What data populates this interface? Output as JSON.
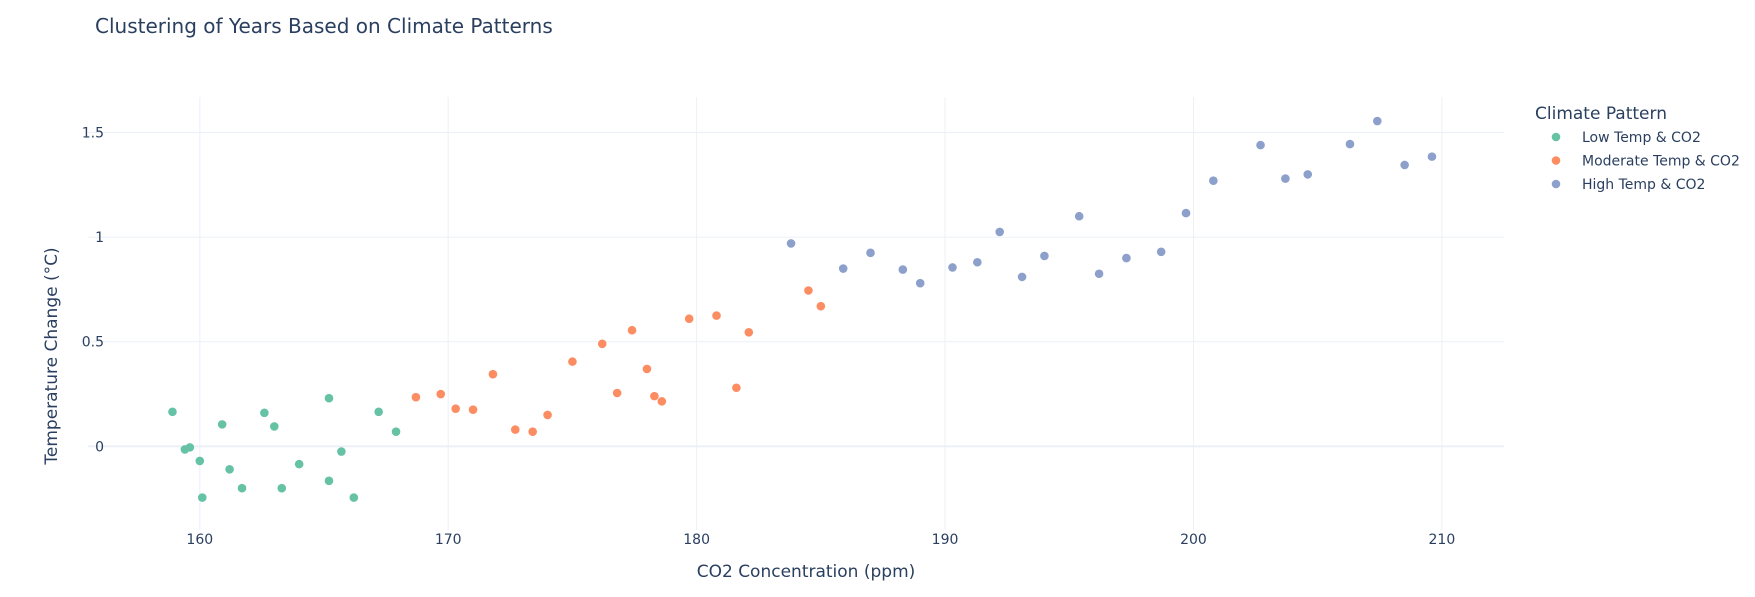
{
  "chart_data": {
    "type": "scatter",
    "title": "Clustering of Years Based on Climate Patterns",
    "xlabel": "CO2 Concentration (ppm)",
    "ylabel": "Temperature Change (°C)",
    "xlim": [
      155.5,
      212.5
    ],
    "ylim": [
      -0.4,
      1.67
    ],
    "x_ticks": [
      160,
      170,
      180,
      190,
      200,
      210
    ],
    "y_ticks": [
      0,
      0.5,
      1,
      1.5
    ],
    "x_tick_labels": [
      "160",
      "170",
      "180",
      "190",
      "200",
      "210"
    ],
    "y_tick_labels": [
      "0",
      "0.5",
      "1",
      "1.5"
    ],
    "grid": true,
    "legend_title": "Climate Pattern",
    "legend_position": "right",
    "series": [
      {
        "name": "Low Temp & CO2",
        "color": "#66c2a5",
        "points": [
          [
            158.9,
            0.165
          ],
          [
            159.4,
            -0.015
          ],
          [
            159.6,
            -0.005
          ],
          [
            160.0,
            -0.07
          ],
          [
            160.1,
            -0.245
          ],
          [
            160.9,
            0.105
          ],
          [
            161.2,
            -0.11
          ],
          [
            161.7,
            -0.2
          ],
          [
            162.6,
            0.16
          ],
          [
            163.0,
            0.095
          ],
          [
            163.3,
            -0.2
          ],
          [
            164.0,
            -0.085
          ],
          [
            165.2,
            -0.165
          ],
          [
            165.2,
            0.23
          ],
          [
            165.7,
            -0.025
          ],
          [
            166.2,
            -0.245
          ],
          [
            167.2,
            0.165
          ],
          [
            167.9,
            0.07
          ]
        ]
      },
      {
        "name": "Moderate Temp & CO2",
        "color": "#fc8d62",
        "points": [
          [
            168.7,
            0.235
          ],
          [
            169.7,
            0.25
          ],
          [
            170.3,
            0.18
          ],
          [
            171.0,
            0.175
          ],
          [
            171.8,
            0.345
          ],
          [
            172.7,
            0.08
          ],
          [
            173.4,
            0.07
          ],
          [
            174.0,
            0.15
          ],
          [
            175.0,
            0.405
          ],
          [
            176.2,
            0.49
          ],
          [
            176.8,
            0.255
          ],
          [
            177.4,
            0.555
          ],
          [
            178.0,
            0.37
          ],
          [
            178.3,
            0.24
          ],
          [
            178.6,
            0.215
          ],
          [
            179.7,
            0.61
          ],
          [
            180.8,
            0.625
          ],
          [
            181.6,
            0.28
          ],
          [
            182.1,
            0.545
          ],
          [
            184.5,
            0.745
          ],
          [
            185.0,
            0.67
          ]
        ]
      },
      {
        "name": "High Temp & CO2",
        "color": "#8da0cb",
        "points": [
          [
            183.8,
            0.97
          ],
          [
            185.9,
            0.85
          ],
          [
            187.0,
            0.925
          ],
          [
            188.3,
            0.845
          ],
          [
            189.0,
            0.78
          ],
          [
            190.3,
            0.855
          ],
          [
            191.3,
            0.88
          ],
          [
            192.2,
            1.025
          ],
          [
            193.1,
            0.81
          ],
          [
            194.0,
            0.91
          ],
          [
            195.4,
            1.1
          ],
          [
            196.2,
            0.825
          ],
          [
            197.3,
            0.9
          ],
          [
            198.7,
            0.93
          ],
          [
            199.7,
            1.115
          ],
          [
            200.8,
            1.27
          ],
          [
            202.7,
            1.44
          ],
          [
            203.7,
            1.28
          ],
          [
            204.6,
            1.3
          ],
          [
            206.3,
            1.445
          ],
          [
            207.4,
            1.555
          ],
          [
            208.5,
            1.345
          ],
          [
            209.6,
            1.385
          ]
        ]
      }
    ]
  }
}
